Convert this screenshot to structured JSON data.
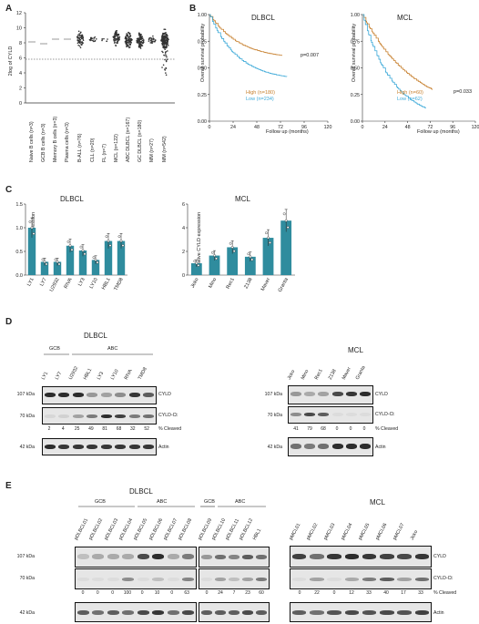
{
  "panels": {
    "A": {
      "letter": "A",
      "ylabel": "2log of CYLD",
      "categories": [
        "Naive B cells (n=3)",
        "GCB B cells (n=3)",
        "Memory B cells (n=3)",
        "Plasma cells (n=3)",
        "B-ALL (n=76)",
        "CLL (n=20)",
        "FL (n=7)",
        "MCL (n=122)",
        "ABC DLBCL (n=167)",
        "GC DLBCL (n=180)",
        "MM (n=27)",
        "MM (n=542)"
      ],
      "yticks": [
        "12",
        "10",
        "8",
        "6",
        "4",
        "2",
        "0"
      ]
    },
    "B": {
      "letter": "B",
      "xlabel": "Follow up (months)",
      "ylabel": "Overall survival probability",
      "dlbcl": {
        "title": "DLBCL",
        "p": "p=0.007",
        "high": "High (n=180)",
        "low": "Low (n=234)"
      },
      "mcl": {
        "title": "MCL",
        "p": "p=0.033",
        "high": "High (n=60)",
        "low": "Low (n=62)"
      },
      "yticks": [
        "1.00",
        "0.75",
        "0.50",
        "0.25",
        "0.00"
      ],
      "xticks": [
        "0",
        "24",
        "48",
        "72",
        "96",
        "120"
      ]
    },
    "C": {
      "letter": "C",
      "ylabel": "Relative CYLD expression",
      "dlbcl": {
        "title": "DLBCL",
        "categories": [
          "LY1",
          "LY7",
          "U2932",
          "RIVA",
          "LY3",
          "LY10",
          "HBL1",
          "TMD8"
        ],
        "values": [
          1.0,
          0.28,
          0.28,
          0.62,
          0.52,
          0.32,
          0.72,
          0.72
        ],
        "yticks": [
          "0.0",
          "0.5",
          "1.0",
          "1.5"
        ]
      },
      "mcl": {
        "title": "MCL",
        "categories": [
          "Jeko",
          "Mino",
          "Rec1",
          "Z138",
          "Maver",
          "Granta"
        ],
        "values": [
          1.0,
          1.65,
          2.35,
          1.55,
          3.15,
          4.6
        ],
        "yticks": [
          "0",
          "2",
          "4",
          "6"
        ]
      }
    },
    "D": {
      "letter": "D",
      "dlbcl_title": "DLBCL",
      "mcl_title": "MCL",
      "gcb": "GCB",
      "abc": "ABC",
      "dlbcl_lanes": [
        "LY1",
        "LY7",
        "U2932",
        "HBL1",
        "LY3",
        "LY10",
        "RIVA",
        "TMD8"
      ],
      "dlbcl_cleaved": [
        "2",
        "4",
        "25",
        "49",
        "81",
        "68",
        "32",
        "52"
      ],
      "mcl_lanes": [
        "Jeko",
        "Mino",
        "Rec1",
        "Z138",
        "Maver",
        "Granta"
      ],
      "mcl_cleaved": [
        "41",
        "79",
        "68",
        "0",
        "0",
        "0"
      ],
      "kda_107": "107 kDa",
      "kda_70": "70 kDa",
      "kda_42": "42 kDa",
      "cyld": "CYLD",
      "cyld_ct": "CYLD-Ct",
      "cleaved": "% Cleaved",
      "actin": "Actin"
    },
    "E": {
      "letter": "E",
      "dlbcl_title": "DLBCL",
      "mcl_title": "MCL",
      "gcb": "GCB",
      "abc": "ABC",
      "g1_lanes": [
        "pDLBCL01",
        "pDLBCL02",
        "pDLBCL03",
        "pDLBCL04",
        "pDLBCL05",
        "pDLBCL06",
        "pDLBCL07",
        "pDLBCL08"
      ],
      "g1_cleaved": [
        "0",
        "0",
        "0",
        "100",
        "0",
        "10",
        "0",
        "63"
      ],
      "g2_lanes": [
        "pDLBCL09",
        "pDLBCL10",
        "pDLBCL11",
        "pDLBCL12",
        "HBL1"
      ],
      "g2_cleaved": [
        "0",
        "24",
        "7",
        "23",
        "60"
      ],
      "mcl_lanes": [
        "pMCL01",
        "pMCL02",
        "pMCL03",
        "pMCL04",
        "pMCL05",
        "pMCL06",
        "pMCL07",
        "Jeko"
      ],
      "mcl_cleaved": [
        "0",
        "22",
        "0",
        "12",
        "33",
        "40",
        "17",
        "33"
      ],
      "kda_107": "107 kDa",
      "kda_70": "70 kDa",
      "kda_42": "42 kDa",
      "cyld": "CYLD",
      "cyld_ct": "CYLD-Ct",
      "cleaved": "% Cleaved",
      "actin": "Actin"
    }
  }
}
